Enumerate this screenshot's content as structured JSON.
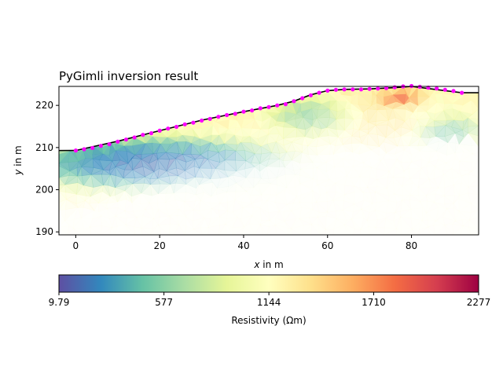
{
  "chart_data": {
    "type": "heatmap",
    "title": "PyGimli inversion result",
    "xlabel_var": "x",
    "xlabel_unit": " in m",
    "ylabel_var": "y",
    "ylabel_unit": " in m",
    "xlim": [
      -4,
      96
    ],
    "ylim": [
      189.3,
      224.5
    ],
    "x_ticks": [
      0,
      20,
      40,
      60,
      80
    ],
    "y_ticks": [
      190,
      200,
      210,
      220
    ],
    "colorscale": "Spectral_r",
    "colorbar": {
      "label": "Resistivity (Ωm)",
      "min": 9.79,
      "max": 2277,
      "ticks": [
        9.79,
        577,
        1144,
        1710,
        2277
      ],
      "tick_labels": [
        "9.79",
        "577",
        "1144",
        "1710",
        "2277"
      ]
    },
    "topography": {
      "x": [
        -4,
        0,
        10,
        20,
        30,
        40,
        48,
        52,
        56,
        60,
        64,
        70,
        76,
        80,
        84,
        88,
        92,
        96
      ],
      "y": [
        209.3,
        209.3,
        211.5,
        214.0,
        216.5,
        218.5,
        220.0,
        221.0,
        222.5,
        223.5,
        223.8,
        223.9,
        224.2,
        224.5,
        224.0,
        223.5,
        223.0,
        223.0
      ]
    },
    "electrodes": {
      "x": [
        0,
        2,
        4,
        6,
        8,
        10,
        12,
        14,
        16,
        18,
        20,
        22,
        24,
        26,
        28,
        30,
        32,
        34,
        36,
        38,
        40,
        42,
        44,
        46,
        48,
        50,
        52,
        54,
        56,
        58,
        60,
        62,
        64,
        66,
        68,
        70,
        72,
        74,
        76,
        78,
        80,
        82,
        84,
        86,
        88,
        90,
        92
      ],
      "y": [
        209.3,
        209.6,
        209.9,
        210.4,
        210.8,
        211.4,
        211.9,
        212.4,
        213.0,
        213.4,
        214.0,
        214.5,
        214.9,
        215.5,
        215.9,
        216.4,
        216.8,
        217.3,
        217.7,
        218.0,
        218.5,
        218.8,
        219.3,
        219.6,
        220.0,
        220.3,
        221.0,
        221.7,
        222.4,
        223.0,
        223.5,
        223.7,
        223.8,
        223.8,
        223.8,
        223.9,
        224.0,
        224.1,
        224.3,
        224.5,
        224.6,
        224.4,
        224.2,
        224.0,
        223.7,
        223.4,
        223.0
      ]
    },
    "resistivity_anomalies": [
      {
        "x": 78,
        "y": 221.5,
        "value": 2100,
        "sx": 4,
        "sy": 1.5
      },
      {
        "x": 72,
        "y": 218.0,
        "value": 1300,
        "sx": 11,
        "sy": 4.5
      },
      {
        "x": 84,
        "y": 219.0,
        "value": 1100,
        "sx": 6,
        "sy": 3.5
      },
      {
        "x": 58,
        "y": 217.5,
        "value": 500,
        "sx": 7,
        "sy": 3
      },
      {
        "x": 88,
        "y": 214.0,
        "value": 400,
        "sx": 5,
        "sy": 3
      },
      {
        "x": 20,
        "y": 206.0,
        "value": 10,
        "sx": 20,
        "sy": 4
      }
    ]
  }
}
